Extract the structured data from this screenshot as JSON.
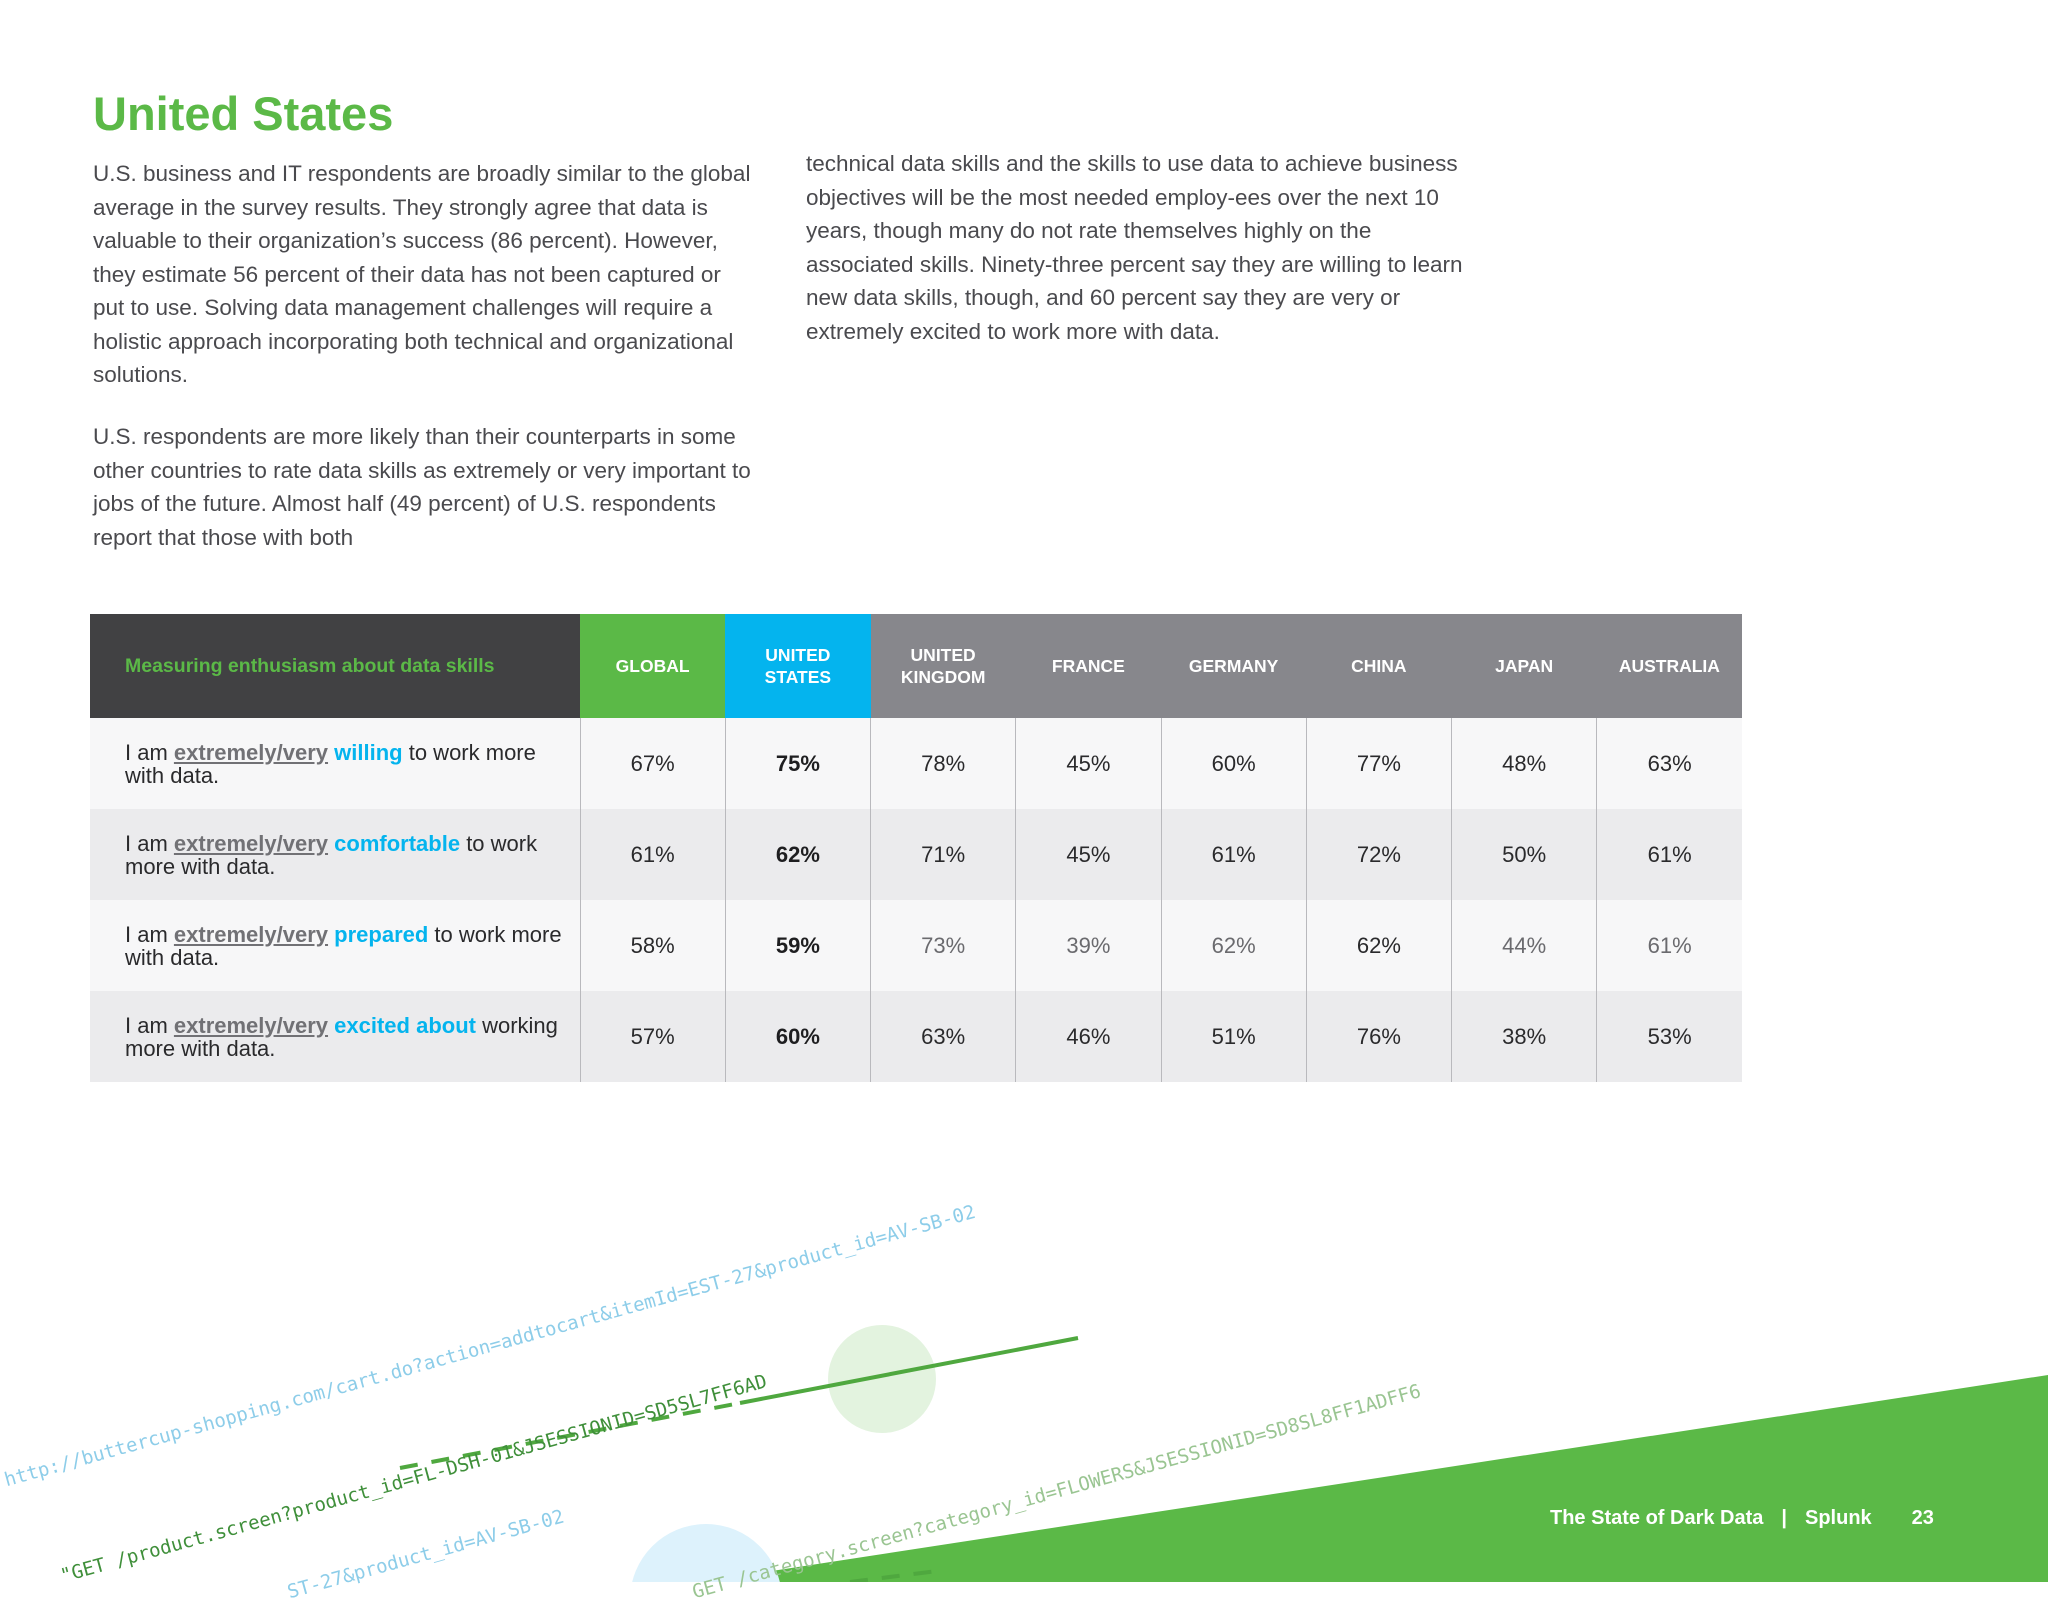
{
  "page": {
    "title": "United States",
    "paragraphs": [
      "U.S. business and IT respondents are broadly similar to the global average in the survey results. They strongly agree that data is valuable to their organization’s success (86 percent). However, they estimate 56 percent of their data has not been captured or put to use. Solving data management challenges will require a holistic approach incorporating both technical and organizational solutions.",
      "U.S. respondents are more likely than their counterparts in some other countries to rate data skills as extremely or very important to jobs of the future. Almost half (49 percent) of U.S. respondents report that those with both",
      "technical data skills and the skills to use data to achieve business objectives will be the most needed employ-ees over the next 10 years, though many do not rate themselves highly on the associated skills. Ninety-three percent say they are willing to learn new data skills, though, and 60 percent say they are very or extremely excited to work more with data."
    ]
  },
  "table": {
    "header_label": "Measuring enthusiasm about data skills",
    "columns": [
      "GLOBAL",
      "UNITED STATES",
      "UNITED KINGDOM",
      "FRANCE",
      "GERMANY",
      "CHINA",
      "JAPAN",
      "AUSTRALIA"
    ],
    "rows": [
      {
        "prefix": "I am ",
        "emph": "extremely/very",
        "keyword": "willing",
        "suffix": " to work more with data.",
        "values": [
          "67%",
          "75%",
          "78%",
          "45%",
          "60%",
          "77%",
          "48%",
          "63%"
        ]
      },
      {
        "prefix": "I am ",
        "emph": "extremely/very",
        "keyword": "comfortable",
        "suffix": " to work more with data.",
        "values": [
          "61%",
          "62%",
          "71%",
          "45%",
          "61%",
          "72%",
          "50%",
          "61%"
        ]
      },
      {
        "prefix": "I am ",
        "emph": "extremely/very",
        "keyword": "prepared",
        "suffix": " to work more with data.",
        "values": [
          "58%",
          "59%",
          "73%",
          "39%",
          "62%",
          "62%",
          "44%",
          "61%"
        ]
      },
      {
        "prefix": "I am ",
        "emph": "extremely/very",
        "keyword": "excited about",
        "suffix": " working more with data.",
        "values": [
          "57%",
          "60%",
          "63%",
          "46%",
          "51%",
          "76%",
          "38%",
          "53%"
        ]
      }
    ]
  },
  "decoration": {
    "code_lines": [
      "http://buttercup-shopping.com/cart.do?action=addtocart&itemId=EST-27&product_id=AV-SB-02",
      "\"GET /product.screen?product_id=FL-DSH-01&JSESSIONID=SD5SL7FF6AD",
      "ST-27&product_id=AV-SB-02",
      "GET /category.screen?category_id=FLOWERS&JSESSIONID=SD8SL8FF1ADFF6"
    ]
  },
  "footer": {
    "doc_title": "The State of Dark Data",
    "separator": "|",
    "brand": "Splunk",
    "page_number": "23"
  },
  "colors": {
    "accent_green": "#5bb947",
    "accent_blue": "#04b4ee",
    "header_dark": "#414143",
    "header_gray": "#87878c"
  }
}
